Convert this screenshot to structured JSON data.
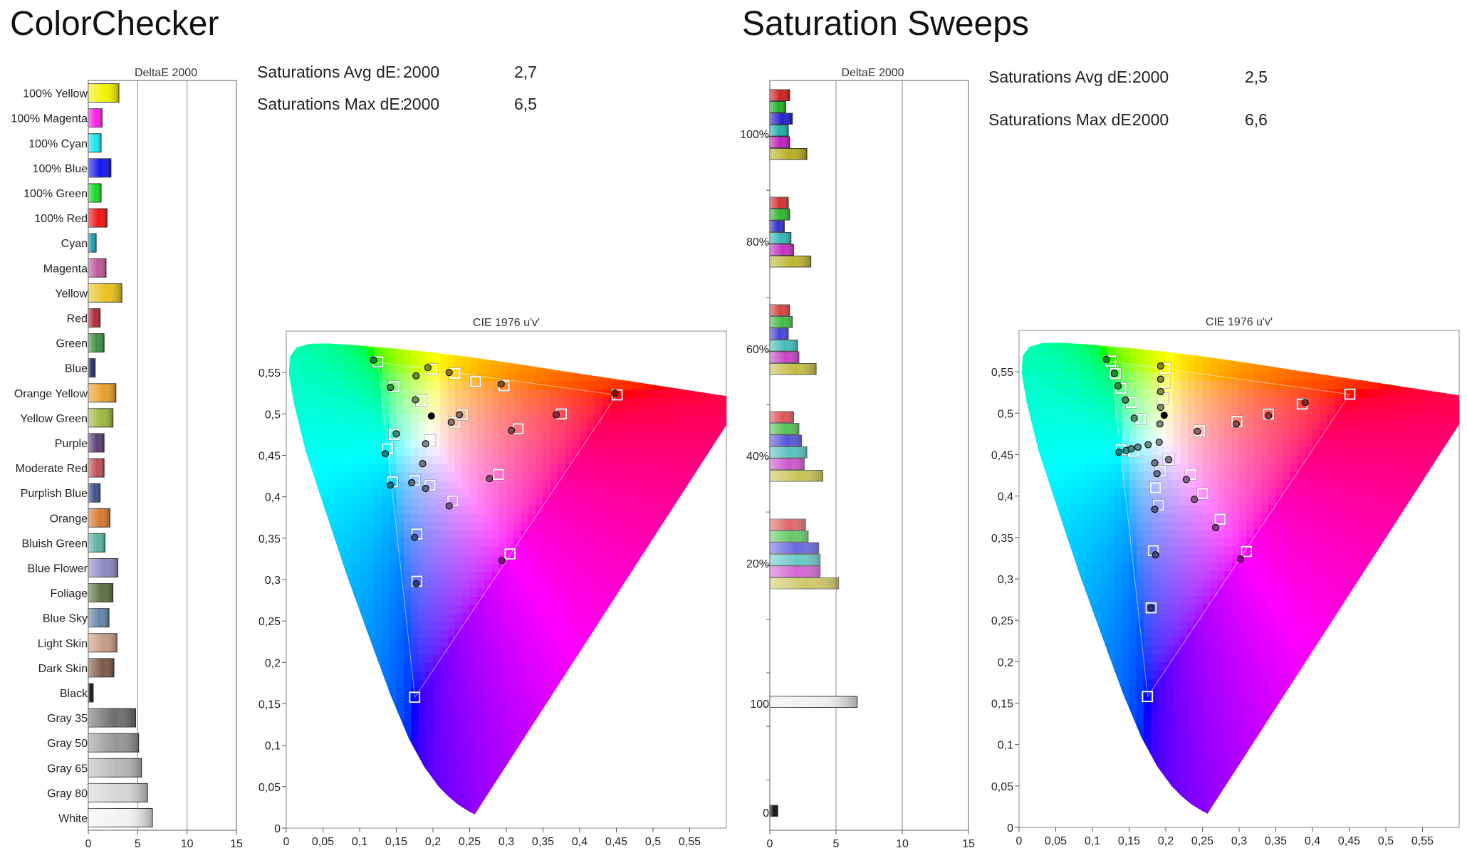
{
  "colorchecker": {
    "title": "ColorChecker",
    "stats": {
      "avg_label": "Saturations Avg dE:",
      "avg_metric": "2000",
      "avg_value": "2,7",
      "max_label": "Saturations Max dE:",
      "max_metric": "2000",
      "max_value": "6,5"
    }
  },
  "sweeps": {
    "title": "Saturation Sweeps",
    "stats": {
      "avg_label": "Saturations Avg dE:",
      "avg_metric": "2000",
      "avg_value": "2,5",
      "max_label": "Saturations Max dE:",
      "max_metric": "2000",
      "max_value": "6,6"
    }
  },
  "chart_data": [
    {
      "type": "bar",
      "orientation": "horizontal",
      "title": "DeltaE 2000",
      "xlim": [
        0,
        15
      ],
      "x_ticks": [
        "0",
        "5",
        "10",
        "15"
      ],
      "gridlines_x": [
        5,
        10
      ],
      "categories": [
        "100% Yellow",
        "100% Magenta",
        "100% Cyan",
        "100% Blue",
        "100% Green",
        "100% Red",
        "Cyan",
        "Magenta",
        "Yellow",
        "Red",
        "Green",
        "Blue",
        "Orange Yellow",
        "Yellow Green",
        "Purple",
        "Moderate Red",
        "Purplish Blue",
        "Orange",
        "Bluish Green",
        "Blue Flower",
        "Foliage",
        "Blue Sky",
        "Light Skin",
        "Dark Skin",
        "Black",
        "Gray 35",
        "Gray 50",
        "Gray 65",
        "Gray 80",
        "White"
      ],
      "values": [
        3.1,
        1.4,
        1.3,
        2.3,
        1.3,
        1.9,
        0.8,
        1.8,
        3.4,
        1.2,
        1.6,
        0.7,
        2.8,
        2.5,
        1.6,
        1.6,
        1.2,
        2.2,
        1.7,
        3.0,
        2.5,
        2.1,
        2.9,
        2.6,
        0.5,
        4.8,
        5.1,
        5.4,
        6.0,
        6.5
      ],
      "colors": [
        "#f4f000",
        "#ff1ee6",
        "#18e6ee",
        "#1414f0",
        "#14dc28",
        "#f01414",
        "#1a9db0",
        "#c0569a",
        "#e8c21c",
        "#b02838",
        "#3e8e48",
        "#25306e",
        "#e6a02c",
        "#9cb83c",
        "#5a3e72",
        "#c0505a",
        "#3c508c",
        "#d8782c",
        "#5ab4a0",
        "#8a88c4",
        "#5c7040",
        "#6484a8",
        "#c89a84",
        "#7c5848",
        "#101010",
        "#6e6e6e",
        "#969696",
        "#b8b8b8",
        "#d6d6d6",
        "#f2f2f2"
      ]
    },
    {
      "type": "scatter",
      "title": "CIE 1976 u'v'",
      "xlim": [
        0,
        0.6
      ],
      "ylim": [
        0,
        0.6
      ],
      "x_ticks": [
        "0",
        "0,05",
        "0,1",
        "0,15",
        "0,2",
        "0,25",
        "0,3",
        "0,35",
        "0,4",
        "0,45",
        "0,5",
        "0,55"
      ],
      "y_ticks": [
        "0",
        "0,05",
        "0,1",
        "0,15",
        "0,2",
        "0,25",
        "0,3",
        "0,35",
        "0,4",
        "0,45",
        "0,5",
        "0,55"
      ],
      "target_squares": [
        [
          0.451,
          0.523
        ],
        [
          0.125,
          0.563
        ],
        [
          0.175,
          0.158
        ],
        [
          0.199,
          0.554
        ],
        [
          0.23,
          0.549
        ],
        [
          0.258,
          0.539
        ],
        [
          0.297,
          0.534
        ],
        [
          0.147,
          0.533
        ],
        [
          0.184,
          0.516
        ],
        [
          0.147,
          0.475
        ],
        [
          0.138,
          0.458
        ],
        [
          0.24,
          0.499
        ],
        [
          0.23,
          0.49
        ],
        [
          0.375,
          0.5
        ],
        [
          0.316,
          0.482
        ],
        [
          0.196,
          0.468
        ],
        [
          0.145,
          0.418
        ],
        [
          0.175,
          0.42
        ],
        [
          0.196,
          0.414
        ],
        [
          0.289,
          0.427
        ],
        [
          0.227,
          0.395
        ],
        [
          0.178,
          0.355
        ],
        [
          0.305,
          0.331
        ],
        [
          0.178,
          0.298
        ]
      ],
      "measured_points": [
        [
          0.448,
          0.525
        ],
        [
          0.119,
          0.565
        ],
        [
          0.193,
          0.556
        ],
        [
          0.222,
          0.55
        ],
        [
          0.293,
          0.536
        ],
        [
          0.142,
          0.532
        ],
        [
          0.177,
          0.546
        ],
        [
          0.176,
          0.517
        ],
        [
          0.15,
          0.476
        ],
        [
          0.135,
          0.452
        ],
        [
          0.236,
          0.499
        ],
        [
          0.225,
          0.49
        ],
        [
          0.368,
          0.499
        ],
        [
          0.307,
          0.48
        ],
        [
          0.19,
          0.464
        ],
        [
          0.142,
          0.414
        ],
        [
          0.171,
          0.417
        ],
        [
          0.19,
          0.41
        ],
        [
          0.277,
          0.422
        ],
        [
          0.222,
          0.389
        ],
        [
          0.175,
          0.351
        ],
        [
          0.294,
          0.323
        ],
        [
          0.177,
          0.295
        ],
        [
          0.186,
          0.44
        ]
      ],
      "white_point": [
        0.1978,
        0.4683
      ]
    },
    {
      "type": "bar",
      "orientation": "horizontal",
      "title": "DeltaE 2000",
      "xlim": [
        0,
        15
      ],
      "x_ticks": [
        "0",
        "5",
        "10",
        "15"
      ],
      "gridlines_x": [
        5,
        10
      ],
      "group_labels": [
        "100%",
        "80%",
        "60%",
        "40%",
        "20%",
        "100",
        "0"
      ],
      "series": [
        {
          "name": "100%",
          "values": [
            1.5,
            1.2,
            1.7,
            1.4,
            1.5,
            2.8
          ]
        },
        {
          "name": "80%",
          "values": [
            1.4,
            1.5,
            1.1,
            1.6,
            1.8,
            3.1
          ]
        },
        {
          "name": "60%",
          "values": [
            1.5,
            1.7,
            1.4,
            2.1,
            2.2,
            3.5
          ]
        },
        {
          "name": "40%",
          "values": [
            1.8,
            2.2,
            2.4,
            2.8,
            2.6,
            4.0
          ]
        },
        {
          "name": "20%",
          "values": [
            2.7,
            2.9,
            3.7,
            3.8,
            3.8,
            5.2
          ]
        },
        {
          "name": "100",
          "values": [
            6.6
          ]
        },
        {
          "name": "0",
          "values": [
            0.6
          ]
        }
      ],
      "sweep_colors": [
        "#d02020",
        "#20b020",
        "#2020d0",
        "#20b0b0",
        "#c020c0",
        "#b8b020"
      ],
      "gray_color": "#f0f0f0",
      "black_color": "#111111"
    },
    {
      "type": "scatter",
      "title": "CIE 1976 u'v'",
      "xlim": [
        0,
        0.6
      ],
      "ylim": [
        0,
        0.6
      ],
      "x_ticks": [
        "0",
        "0,05",
        "0,1",
        "0,15",
        "0,2",
        "0,25",
        "0,3",
        "0,35",
        "0,4",
        "0,45",
        "0,5",
        "0,55"
      ],
      "y_ticks": [
        "0",
        "0,05",
        "0,1",
        "0,15",
        "0,2",
        "0,25",
        "0,3",
        "0,35",
        "0,4",
        "0,45",
        "0,5",
        "0,55"
      ],
      "target_squares": [
        [
          0.451,
          0.523
        ],
        [
          0.125,
          0.563
        ],
        [
          0.175,
          0.158
        ],
        [
          0.199,
          0.554
        ],
        [
          0.198,
          0.537
        ],
        [
          0.196,
          0.518
        ],
        [
          0.139,
          0.53
        ],
        [
          0.153,
          0.513
        ],
        [
          0.166,
          0.493
        ],
        [
          0.131,
          0.548
        ],
        [
          0.156,
          0.454
        ],
        [
          0.139,
          0.456
        ],
        [
          0.204,
          0.444
        ],
        [
          0.193,
          0.43
        ],
        [
          0.186,
          0.41
        ],
        [
          0.386,
          0.511
        ],
        [
          0.34,
          0.499
        ],
        [
          0.297,
          0.49
        ],
        [
          0.246,
          0.479
        ],
        [
          0.234,
          0.426
        ],
        [
          0.25,
          0.403
        ],
        [
          0.274,
          0.372
        ],
        [
          0.31,
          0.333
        ],
        [
          0.19,
          0.389
        ],
        [
          0.183,
          0.334
        ],
        [
          0.18,
          0.265
        ]
      ],
      "measured_points": [
        [
          0.119,
          0.565
        ],
        [
          0.13,
          0.548
        ],
        [
          0.135,
          0.533
        ],
        [
          0.145,
          0.516
        ],
        [
          0.157,
          0.494
        ],
        [
          0.136,
          0.453
        ],
        [
          0.146,
          0.455
        ],
        [
          0.153,
          0.457
        ],
        [
          0.162,
          0.459
        ],
        [
          0.176,
          0.462
        ],
        [
          0.193,
          0.557
        ],
        [
          0.193,
          0.541
        ],
        [
          0.193,
          0.526
        ],
        [
          0.193,
          0.507
        ],
        [
          0.192,
          0.487
        ],
        [
          0.191,
          0.465
        ],
        [
          0.39,
          0.513
        ],
        [
          0.34,
          0.497
        ],
        [
          0.296,
          0.487
        ],
        [
          0.243,
          0.478
        ],
        [
          0.228,
          0.42
        ],
        [
          0.239,
          0.396
        ],
        [
          0.268,
          0.362
        ],
        [
          0.302,
          0.324
        ],
        [
          0.204,
          0.444
        ],
        [
          0.185,
          0.384
        ],
        [
          0.186,
          0.329
        ],
        [
          0.18,
          0.265
        ],
        [
          0.188,
          0.427
        ],
        [
          0.185,
          0.44
        ]
      ],
      "white_point": [
        0.1978,
        0.4683
      ]
    }
  ]
}
